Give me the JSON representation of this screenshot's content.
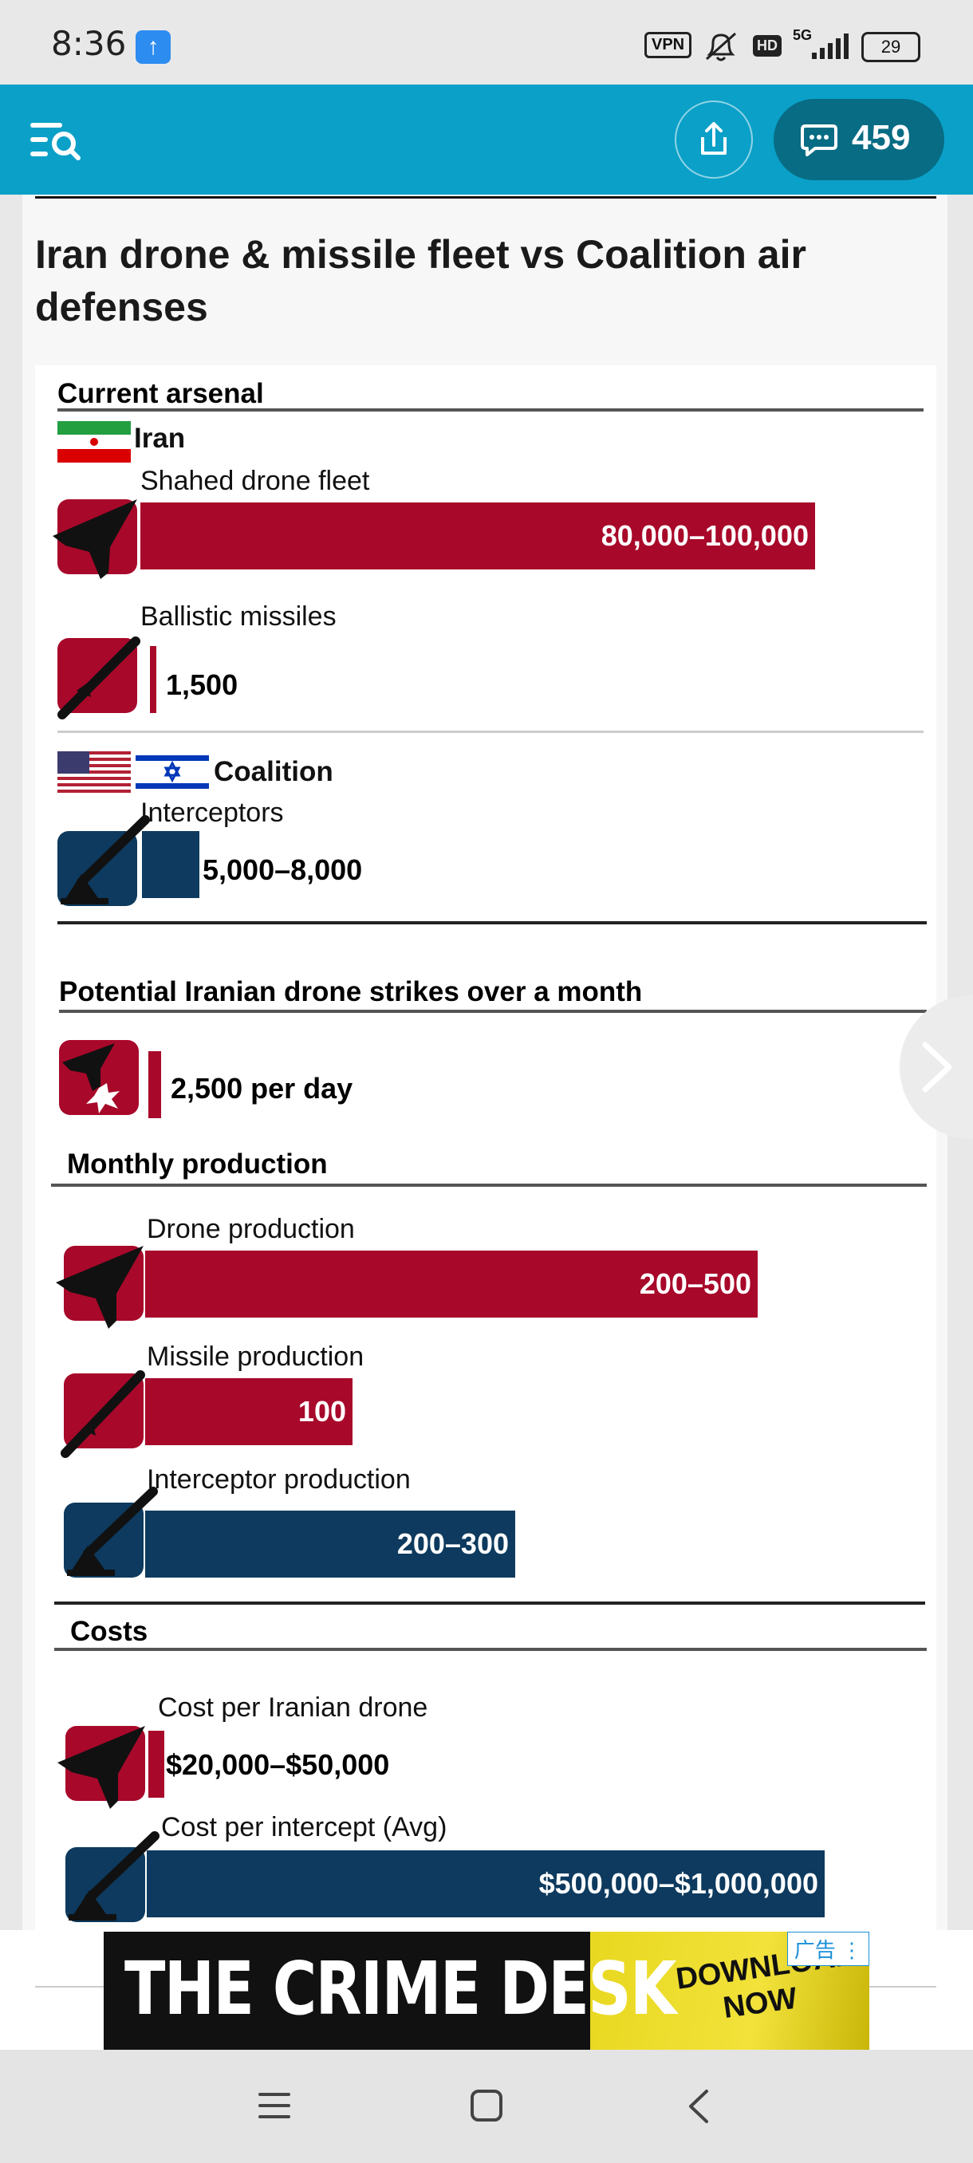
{
  "status_bar": {
    "time": "8:36",
    "vpn": "VPN",
    "hd": "HD",
    "network": "5G",
    "battery": "29"
  },
  "header": {
    "comments_count": "459",
    "menu_icon": "menu-search-icon",
    "share_icon": "share-icon",
    "comment_icon": "comment-bubble-icon"
  },
  "article": {
    "title": "Iran drone & missile fleet vs Coalition air defenses",
    "sections": {
      "arsenal": {
        "heading": "Current arsenal",
        "iran_label": "Iran",
        "coalition_label": "Coalition",
        "shahed_label": "Shahed drone fleet",
        "shahed_value": "80,000–100,000",
        "ballistic_label": "Ballistic missiles",
        "ballistic_value": "1,500",
        "interceptors_label": "Interceptors",
        "interceptors_value": "5,000–8,000"
      },
      "strikes": {
        "heading": "Potential Iranian drone strikes over a month",
        "value": "2,500 per day"
      },
      "production": {
        "heading": "Monthly production",
        "drone_label": "Drone production",
        "drone_value": "200–500",
        "missile_label": "Missile production",
        "missile_value": "100",
        "interceptor_label": "Interceptor production",
        "interceptor_value": "200–300"
      },
      "costs": {
        "heading": "Costs",
        "drone_cost_label": "Cost per Iranian drone",
        "drone_cost_value": "$20,000–$50,000",
        "intercept_cost_label": "Cost per intercept (Avg)",
        "intercept_cost_value": "$500,000–$1,000,000"
      }
    }
  },
  "ad": {
    "title": "THE CRIME DESK",
    "cta": "DOWNLOAD NOW",
    "tag": "广告"
  },
  "colors": {
    "iran_red": "#a8082a",
    "coalition_navy": "#0d3a5e",
    "header_teal": "#0aa0c8"
  }
}
